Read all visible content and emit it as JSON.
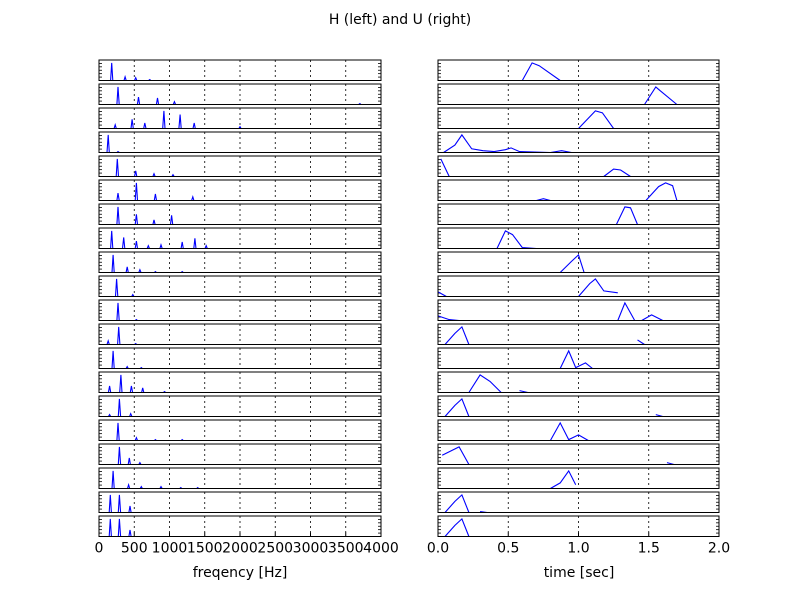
{
  "figure": {
    "title": "H (left) and U (right)"
  },
  "chart_data": [
    {
      "type": "line",
      "panel": "left",
      "rows": 20,
      "xlabel": "freqency [Hz]",
      "ylabel": "",
      "xlim": [
        0,
        4000
      ],
      "ylim": [
        0,
        1
      ],
      "x_ticks": [
        0,
        500,
        1000,
        1500,
        2000,
        2500,
        3000,
        3500,
        4000
      ],
      "x_tick_labels": [
        "0",
        "500",
        "1000",
        "1500",
        "2000",
        "2500",
        "3000",
        "3500",
        "4000"
      ],
      "vertical_grid": true,
      "line_color": "#0000ff",
      "series": [
        {
          "peaks": [
            [
              180,
              0.95
            ],
            [
              370,
              0.2
            ],
            [
              520,
              0.15
            ],
            [
              720,
              0.05
            ]
          ]
        },
        {
          "peaks": [
            [
              270,
              0.95
            ],
            [
              560,
              0.4
            ],
            [
              830,
              0.35
            ],
            [
              1070,
              0.15
            ],
            [
              3700,
              0.05
            ]
          ]
        },
        {
          "peaks": [
            [
              230,
              0.2
            ],
            [
              470,
              0.5
            ],
            [
              650,
              0.3
            ],
            [
              920,
              0.95
            ],
            [
              1150,
              0.75
            ],
            [
              1350,
              0.3
            ],
            [
              2000,
              0.1
            ]
          ]
        },
        {
          "peaks": [
            [
              130,
              0.95
            ],
            [
              270,
              0.05
            ]
          ]
        },
        {
          "peaks": [
            [
              260,
              0.95
            ],
            [
              520,
              0.3
            ],
            [
              780,
              0.15
            ],
            [
              1050,
              0.1
            ]
          ]
        },
        {
          "peaks": [
            [
              270,
              0.4
            ],
            [
              530,
              0.95
            ],
            [
              800,
              0.35
            ],
            [
              1330,
              0.2
            ]
          ]
        },
        {
          "peaks": [
            [
              270,
              0.95
            ],
            [
              530,
              0.55
            ],
            [
              780,
              0.25
            ],
            [
              1030,
              0.5
            ]
          ]
        },
        {
          "peaks": [
            [
              180,
              0.95
            ],
            [
              350,
              0.6
            ],
            [
              530,
              0.4
            ],
            [
              700,
              0.15
            ],
            [
              880,
              0.2
            ],
            [
              1180,
              0.35
            ],
            [
              1360,
              0.55
            ],
            [
              1520,
              0.15
            ]
          ]
        },
        {
          "peaks": [
            [
              200,
              0.95
            ],
            [
              400,
              0.3
            ],
            [
              580,
              0.15
            ],
            [
              800,
              0.05
            ],
            [
              1180,
              0.05
            ]
          ]
        },
        {
          "peaks": [
            [
              250,
              0.95
            ],
            [
              480,
              0.1
            ]
          ]
        },
        {
          "peaks": [
            [
              270,
              0.95
            ],
            [
              530,
              0.05
            ]
          ]
        },
        {
          "peaks": [
            [
              130,
              0.2
            ],
            [
              280,
              0.95
            ],
            [
              520,
              0.05
            ]
          ]
        },
        {
          "peaks": [
            [
              200,
              0.95
            ],
            [
              400,
              0.1
            ],
            [
              600,
              0.05
            ]
          ]
        },
        {
          "peaks": [
            [
              150,
              0.35
            ],
            [
              310,
              0.95
            ],
            [
              460,
              0.35
            ],
            [
              620,
              0.25
            ],
            [
              930,
              0.05
            ]
          ]
        },
        {
          "peaks": [
            [
              150,
              0.1
            ],
            [
              290,
              0.95
            ],
            [
              450,
              0.15
            ]
          ]
        },
        {
          "peaks": [
            [
              270,
              0.95
            ],
            [
              530,
              0.15
            ],
            [
              800,
              0.05
            ],
            [
              1180,
              0.05
            ]
          ]
        },
        {
          "peaks": [
            [
              290,
              0.95
            ],
            [
              430,
              0.35
            ],
            [
              580,
              0.1
            ]
          ]
        },
        {
          "peaks": [
            [
              200,
              0.95
            ],
            [
              420,
              0.2
            ],
            [
              600,
              0.1
            ],
            [
              880,
              0.1
            ],
            [
              1160,
              0.05
            ],
            [
              1400,
              0.05
            ]
          ]
        },
        {
          "peaks": [
            [
              160,
              0.95
            ],
            [
              290,
              0.95
            ],
            [
              440,
              0.35
            ]
          ]
        },
        {
          "peaks": [
            [
              160,
              0.95
            ],
            [
              290,
              0.95
            ],
            [
              440,
              0.35
            ]
          ]
        }
      ]
    },
    {
      "type": "line",
      "panel": "right",
      "rows": 20,
      "xlabel": "time [sec]",
      "ylabel": "",
      "xlim": [
        0,
        2
      ],
      "ylim": [
        0,
        1
      ],
      "x_ticks": [
        0,
        0.5,
        1,
        1.5,
        2
      ],
      "x_tick_labels": [
        "0.0",
        "0.5",
        "1.0",
        "1.5",
        "2.0"
      ],
      "vertical_grid": true,
      "line_color": "#0000ff",
      "series": [
        {
          "x": [
            0.6,
            0.67,
            0.72,
            0.87
          ],
          "y": [
            0,
            0.95,
            0.8,
            0
          ]
        },
        {
          "x": [
            1.47,
            1.55,
            1.58,
            1.7
          ],
          "y": [
            0,
            0.95,
            0.75,
            0
          ]
        },
        {
          "x": [
            1.0,
            1.12,
            1.17,
            1.25
          ],
          "y": [
            0,
            0.95,
            0.85,
            0
          ]
        },
        {
          "x": [
            0.04,
            0.12,
            0.17,
            0.24,
            0.32,
            0.4,
            0.48,
            0.52,
            0.58,
            0.8,
            0.88,
            0.95
          ],
          "y": [
            0,
            0.4,
            0.95,
            0.2,
            0.1,
            0.05,
            0.15,
            0.25,
            0.05,
            0,
            0.1,
            0
          ]
        },
        {
          "x": [
            0.02,
            0.08
          ],
          "y": [
            0.95,
            0
          ]
        },
        {
          "x": [
            1.18,
            1.25,
            1.3,
            1.37
          ],
          "y": [
            0,
            0.4,
            0.35,
            0
          ]
        },
        {
          "x": [
            0.7,
            0.75,
            0.8
          ],
          "y": [
            0,
            0.1,
            0
          ]
        },
        {
          "x": [
            1.48,
            1.57,
            1.62,
            1.67,
            1.7
          ],
          "y": [
            0,
            0.75,
            0.95,
            0.8,
            0
          ]
        },
        {
          "x": [
            1.27,
            1.33,
            1.37,
            1.42
          ],
          "y": [
            0,
            0.95,
            0.9,
            0
          ]
        },
        {
          "x": [
            0.42,
            0.48,
            0.53,
            0.6,
            0.7
          ],
          "y": [
            0,
            0.95,
            0.75,
            0.05,
            0
          ]
        },
        {
          "x": [
            0.87,
            0.95,
            1.0,
            1.04
          ],
          "y": [
            0,
            0.6,
            0.95,
            0
          ]
        },
        {
          "x": [
            0.0,
            0.06
          ],
          "y": [
            0.25,
            0
          ]
        },
        {
          "x": [
            1.0,
            1.08,
            1.12,
            1.18,
            1.28
          ],
          "y": [
            0,
            0.7,
            0.95,
            0.3,
            0.2
          ]
        },
        {
          "x": [
            0.0,
            0.08,
            0.15
          ],
          "y": [
            0.25,
            0.05,
            0
          ]
        },
        {
          "x": [
            1.28,
            1.33,
            1.4
          ],
          "y": [
            0,
            0.95,
            0
          ]
        },
        {
          "x": [
            1.45,
            1.52,
            1.6
          ],
          "y": [
            0,
            0.3,
            0
          ]
        },
        {
          "x": [
            0.05,
            0.12,
            0.17,
            0.22
          ],
          "y": [
            0,
            0.6,
            0.95,
            0
          ]
        },
        {
          "x": [
            1.42,
            1.47
          ],
          "y": [
            0.25,
            0
          ]
        },
        {
          "x": [
            0.87,
            0.93,
            0.98,
            1.05,
            1.1
          ],
          "y": [
            0,
            0.95,
            0.05,
            0.3,
            0
          ]
        },
        {
          "x": [
            0.22,
            0.3,
            0.37,
            0.45
          ],
          "y": [
            0,
            0.95,
            0.6,
            0
          ]
        },
        {
          "x": [
            0.58,
            0.64
          ],
          "y": [
            0.1,
            0
          ]
        },
        {
          "x": [
            0.05,
            0.12,
            0.17,
            0.22
          ],
          "y": [
            0,
            0.6,
            0.95,
            0
          ]
        },
        {
          "x": [
            1.55,
            1.6
          ],
          "y": [
            0.1,
            0
          ]
        },
        {
          "x": [
            0.8,
            0.87,
            0.93,
            1.0,
            1.07
          ],
          "y": [
            0,
            0.95,
            0.05,
            0.3,
            0
          ]
        },
        {
          "x": [
            0.03,
            0.15,
            0.22
          ],
          "y": [
            0.5,
            0.95,
            0
          ]
        },
        {
          "x": [
            1.63,
            1.68
          ],
          "y": [
            0.1,
            0
          ]
        },
        {
          "x": [
            0.8,
            0.87,
            0.93,
            0.98
          ],
          "y": [
            0,
            0.3,
            0.95,
            0.2
          ]
        },
        {
          "x": [
            0.05,
            0.12,
            0.17,
            0.22
          ],
          "y": [
            0,
            0.6,
            0.95,
            0
          ]
        },
        {
          "x": [
            0.3,
            0.35
          ],
          "y": [
            0.05,
            0
          ]
        },
        {
          "x": [
            0.05,
            0.12,
            0.17,
            0.22
          ],
          "y": [
            0,
            0.6,
            0.95,
            0
          ]
        }
      ],
      "row_series_map": [
        [
          0
        ],
        [
          1
        ],
        [
          2
        ],
        [
          3
        ],
        [
          4,
          5
        ],
        [
          6,
          7
        ],
        [
          8
        ],
        [
          9
        ],
        [
          10
        ],
        [
          11,
          12
        ],
        [
          13,
          14,
          15
        ],
        [
          16,
          17
        ],
        [
          18
        ],
        [
          19,
          20
        ],
        [
          21,
          22
        ],
        [
          23
        ],
        [
          24,
          25
        ],
        [
          26
        ],
        [
          27,
          28
        ],
        [
          29
        ]
      ]
    }
  ]
}
